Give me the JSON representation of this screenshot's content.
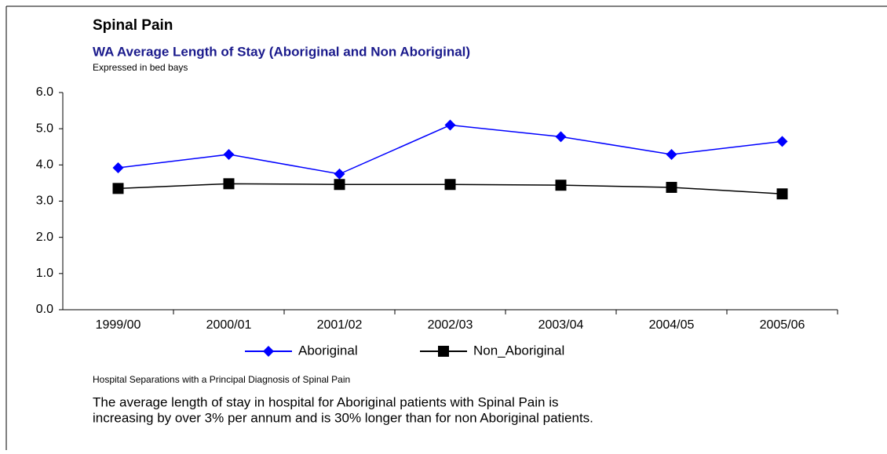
{
  "chart_data": {
    "type": "line",
    "title": "Spinal Pain",
    "subtitle": "WA Average Length of Stay (Aboriginal and Non Aboriginal)",
    "y_label": "Expressed in bed bays",
    "categories": [
      "1999/00",
      "2000/01",
      "2001/02",
      "2002/03",
      "2003/04",
      "2004/05",
      "2005/06"
    ],
    "series": [
      {
        "name": "Aboriginal",
        "color": "#0000ff",
        "marker": "diamond",
        "values": [
          3.92,
          4.29,
          3.75,
          5.1,
          4.78,
          4.29,
          4.65
        ]
      },
      {
        "name": "Non_Aboriginal",
        "color": "#000000",
        "marker": "square",
        "values": [
          3.35,
          3.48,
          3.46,
          3.46,
          3.44,
          3.38,
          3.2
        ]
      }
    ],
    "ylim": [
      0,
      6
    ],
    "yticks": [
      {
        "value": 0,
        "label": "0.0"
      },
      {
        "value": 1,
        "label": "1.0"
      },
      {
        "value": 2,
        "label": "2.0"
      },
      {
        "value": 3,
        "label": "3.0"
      },
      {
        "value": 4,
        "label": "4.0"
      },
      {
        "value": 5,
        "label": "5.0"
      },
      {
        "value": 6,
        "label": "6.0"
      }
    ],
    "grid": false,
    "legend": "bottom",
    "caption": "Hospital Separations with a Principal Diagnosis of Spinal Pain",
    "notes": [
      "The average length of stay in hospital for Aboriginal patients with Spinal Pain is",
      "increasing by over 3% per annum and is 30% longer than for non Aboriginal patients."
    ]
  }
}
